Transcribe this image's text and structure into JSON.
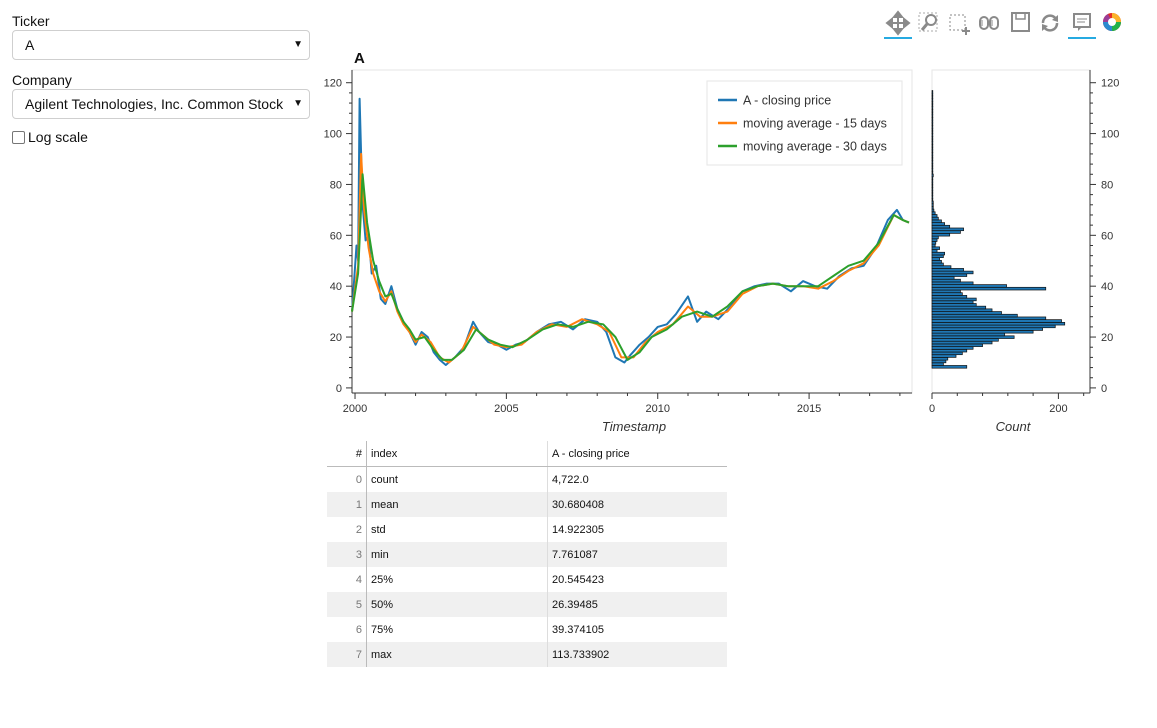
{
  "controls": {
    "ticker_label": "Ticker",
    "ticker_value": "A",
    "company_label": "Company",
    "company_value": "Agilent Technologies, Inc. Common Stock",
    "log_scale_label": "Log scale",
    "log_scale_checked": false
  },
  "toolbar": {
    "tools": [
      {
        "name": "pan-icon",
        "active": true
      },
      {
        "name": "zoom-icon",
        "active": false
      },
      {
        "name": "box-zoom-icon",
        "active": false
      },
      {
        "name": "lasso-icon",
        "active": false
      },
      {
        "name": "save-icon",
        "active": false
      },
      {
        "name": "reset-icon",
        "active": false
      },
      {
        "name": "hover-icon",
        "active": true
      },
      {
        "name": "bokeh-logo-icon",
        "active": false
      }
    ]
  },
  "colors": {
    "close": "#1f77b4",
    "ma15": "#ff7f0e",
    "ma30": "#2ca02c",
    "hist_fill": "#1f77b4"
  },
  "chart_data": [
    {
      "type": "line",
      "title": "A",
      "xlabel": "Timestamp",
      "ylabel": "",
      "xlim": [
        1999.9,
        2018.4
      ],
      "ylim": [
        -2,
        125
      ],
      "x_ticks": [
        "2000",
        "2005",
        "2010",
        "2015"
      ],
      "y_ticks": [
        "0",
        "20",
        "40",
        "60",
        "80",
        "100",
        "120"
      ],
      "legend_position": "top-right",
      "series": [
        {
          "name": "A  - closing price",
          "x": [
            1999.9,
            2000.05,
            2000.1,
            2000.15,
            2000.2,
            2000.25,
            2000.35,
            2000.45,
            2000.55,
            2000.7,
            2000.85,
            2001.0,
            2001.2,
            2001.4,
            2001.6,
            2001.8,
            2002.0,
            2002.2,
            2002.4,
            2002.6,
            2002.8,
            2003.0,
            2003.3,
            2003.6,
            2003.9,
            2004.1,
            2004.4,
            2004.7,
            2005.0,
            2005.3,
            2005.6,
            2006.0,
            2006.4,
            2006.8,
            2007.2,
            2007.6,
            2008.0,
            2008.3,
            2008.6,
            2008.9,
            2009.1,
            2009.4,
            2009.7,
            2010.0,
            2010.3,
            2010.6,
            2011.0,
            2011.3,
            2011.6,
            2012.0,
            2012.4,
            2012.8,
            2013.2,
            2013.6,
            2014.0,
            2014.4,
            2014.8,
            2015.2,
            2015.6,
            2016.0,
            2016.4,
            2016.8,
            2017.2,
            2017.6,
            2017.9,
            2018.1,
            2018.3
          ],
          "y": [
            30,
            56,
            50,
            113.7,
            92,
            72,
            58,
            60,
            45,
            48,
            35,
            33,
            40,
            31,
            26,
            22,
            17,
            22,
            20,
            14,
            11,
            9,
            12,
            16,
            26,
            22,
            18,
            17,
            15,
            17,
            18,
            22,
            25,
            26,
            23,
            27,
            26,
            22,
            12,
            10,
            13,
            17,
            20,
            24,
            25,
            29,
            36,
            26,
            30,
            27,
            32,
            38,
            40,
            41,
            41,
            38,
            42,
            40,
            39,
            44,
            47,
            48,
            55,
            66,
            70,
            66,
            65
          ]
        },
        {
          "name": "moving average - 15 days",
          "x": [
            1999.9,
            2000.1,
            2000.2,
            2000.3,
            2000.45,
            2000.6,
            2000.8,
            2001.0,
            2001.2,
            2001.4,
            2001.6,
            2001.8,
            2002.0,
            2002.2,
            2002.5,
            2002.8,
            2003.1,
            2003.5,
            2003.9,
            2004.2,
            2004.6,
            2005.0,
            2005.5,
            2006.0,
            2006.5,
            2007.0,
            2007.5,
            2008.0,
            2008.4,
            2008.8,
            2009.2,
            2009.6,
            2010.0,
            2010.5,
            2011.0,
            2011.4,
            2011.8,
            2012.3,
            2012.8,
            2013.3,
            2013.8,
            2014.3,
            2014.8,
            2015.3,
            2015.8,
            2016.3,
            2016.8,
            2017.3,
            2017.8,
            2018.1,
            2018.3
          ],
          "y": [
            30,
            48,
            92,
            70,
            55,
            45,
            38,
            34,
            38,
            30,
            25,
            22,
            18,
            21,
            18,
            12,
            10,
            14,
            24,
            21,
            17,
            16,
            17,
            22,
            25,
            24,
            27,
            25,
            22,
            12,
            12,
            18,
            22,
            25,
            32,
            28,
            28,
            30,
            37,
            40,
            41,
            40,
            40,
            39,
            42,
            46,
            49,
            56,
            68,
            66,
            65
          ]
        },
        {
          "name": "moving average - 30 days",
          "x": [
            1999.9,
            2000.1,
            2000.25,
            2000.4,
            2000.6,
            2000.8,
            2001.0,
            2001.2,
            2001.4,
            2001.6,
            2001.8,
            2002.0,
            2002.3,
            2002.6,
            2002.9,
            2003.2,
            2003.6,
            2004.0,
            2004.4,
            2004.8,
            2005.2,
            2005.7,
            2006.2,
            2006.7,
            2007.2,
            2007.7,
            2008.2,
            2008.6,
            2009.0,
            2009.4,
            2009.8,
            2010.3,
            2010.8,
            2011.3,
            2011.8,
            2012.3,
            2012.8,
            2013.3,
            2013.8,
            2014.3,
            2014.8,
            2015.3,
            2015.8,
            2016.3,
            2016.8,
            2017.3,
            2017.8,
            2018.1,
            2018.3
          ],
          "y": [
            30,
            45,
            84,
            65,
            50,
            42,
            36,
            37,
            31,
            26,
            23,
            19,
            20,
            15,
            11,
            11,
            15,
            23,
            19,
            17,
            16,
            19,
            23,
            25,
            24,
            26,
            25,
            20,
            11,
            14,
            20,
            23,
            28,
            30,
            28,
            32,
            38,
            40,
            41,
            40,
            40,
            40,
            44,
            48,
            50,
            57,
            68,
            66,
            65
          ]
        }
      ]
    },
    {
      "type": "bar",
      "orientation": "horizontal",
      "xlabel": "Count",
      "ylabel": "",
      "xlim": [
        0,
        250
      ],
      "ylim": [
        -2,
        125
      ],
      "x_ticks": [
        "0",
        "200"
      ],
      "y_ticks": [
        "0",
        "20",
        "40",
        "60",
        "80",
        "100",
        "120"
      ],
      "bin_start": 7.76,
      "bin_width": 1.06,
      "values": [
        55,
        18,
        22,
        25,
        38,
        48,
        55,
        65,
        80,
        95,
        105,
        130,
        115,
        160,
        175,
        195,
        210,
        205,
        180,
        135,
        110,
        95,
        85,
        70,
        65,
        70,
        55,
        48,
        45,
        180,
        118,
        65,
        45,
        35,
        55,
        65,
        50,
        30,
        18,
        15,
        12,
        18,
        20,
        8,
        12,
        5,
        6,
        8,
        10,
        28,
        45,
        50,
        28,
        20,
        15,
        10,
        8,
        5,
        3,
        2,
        2,
        2,
        1,
        1,
        1,
        1,
        1,
        1,
        1,
        1,
        1,
        2,
        1,
        1,
        1,
        1,
        1,
        1,
        1,
        1,
        1,
        1,
        1,
        1,
        1,
        1,
        1,
        1,
        1,
        1,
        1,
        1,
        1,
        1,
        1,
        1,
        1,
        1,
        1,
        1,
        1,
        1,
        1
      ]
    }
  ],
  "stats_table": {
    "headers": [
      "#",
      "index",
      "A - closing price"
    ],
    "rows": [
      [
        "0",
        "count",
        "4,722.0"
      ],
      [
        "1",
        "mean",
        "30.680408"
      ],
      [
        "2",
        "std",
        "14.922305"
      ],
      [
        "3",
        "min",
        "7.761087"
      ],
      [
        "4",
        "25%",
        "20.545423"
      ],
      [
        "5",
        "50%",
        "26.39485"
      ],
      [
        "6",
        "75%",
        "39.374105"
      ],
      [
        "7",
        "max",
        "113.733902"
      ]
    ]
  }
}
